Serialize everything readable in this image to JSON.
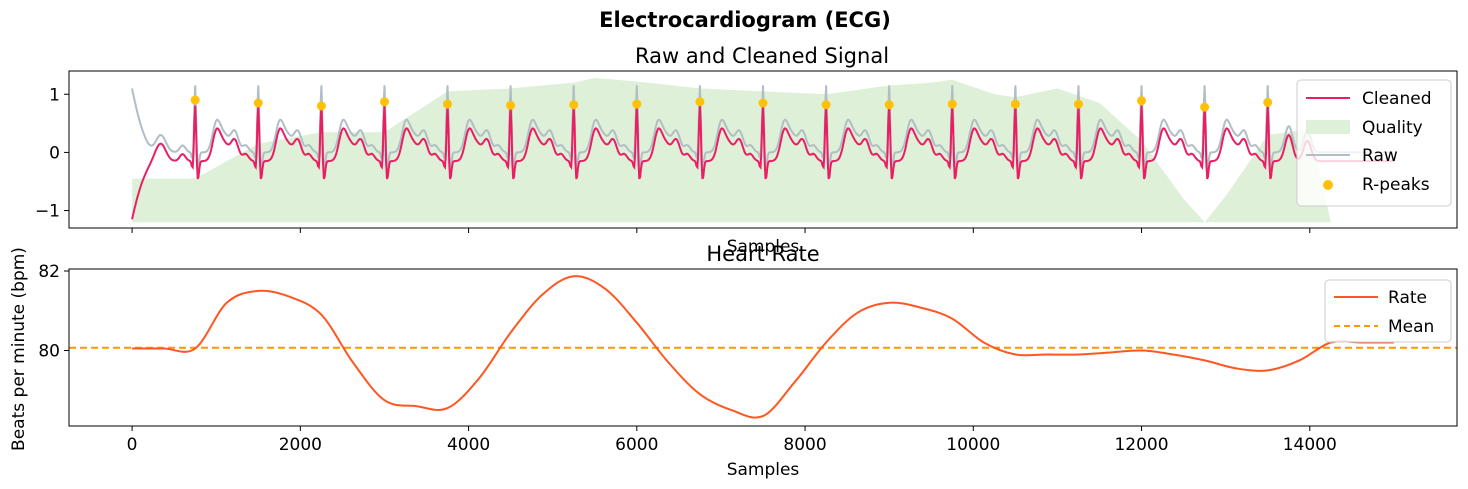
{
  "figure": {
    "suptitle": "Electrocardiogram (ECG)"
  },
  "chart_data": [
    {
      "type": "line",
      "title": "Raw and Cleaned Signal",
      "xlabel": "Samples",
      "ylabel": "",
      "xlim": [
        -750,
        15750
      ],
      "ylim": [
        -1.3,
        1.4
      ],
      "yticks": [
        -1,
        0,
        1
      ],
      "ytick_labels": [
        "−1",
        "0",
        "1"
      ],
      "xticks_shown_labels": false,
      "grid": false,
      "legend_position": "top-right",
      "sampling_rate": 1000,
      "r_peaks": {
        "name": "R-peaks",
        "color": "#FFC107",
        "x": [
          750,
          1500,
          2250,
          3000,
          3750,
          4500,
          5250,
          6000,
          6750,
          7500,
          8250,
          9000,
          9750,
          10500,
          11250,
          12000,
          12750,
          13500
        ],
        "y": [
          0.9,
          0.85,
          0.8,
          0.87,
          0.83,
          0.81,
          0.82,
          0.83,
          0.87,
          0.85,
          0.82,
          0.82,
          0.83,
          0.83,
          0.83,
          0.89,
          0.78,
          0.86
        ]
      },
      "series": [
        {
          "name": "Cleaned",
          "color": "#E91E63",
          "peak": 1.0,
          "baseline": -0.15
        },
        {
          "name": "Raw",
          "color": "#B0BEC5",
          "peak": 1.2,
          "baseline": 0.0
        },
        {
          "name": "Quality",
          "color": "#DFF0D8",
          "x": [
            0,
            250,
            750,
            1500,
            2250,
            3000,
            3750,
            4500,
            5250,
            5500,
            6000,
            6750,
            7500,
            8250,
            9000,
            9500,
            9750,
            10250,
            10500,
            11000,
            11500,
            12000,
            12500,
            12750,
            13000,
            13500,
            14000,
            14250
          ],
          "y": [
            -0.45,
            -0.45,
            -0.45,
            0.15,
            0.35,
            0.35,
            1.05,
            1.1,
            1.2,
            1.28,
            1.22,
            1.1,
            1.05,
            1.0,
            1.15,
            1.2,
            1.25,
            1.0,
            0.95,
            1.1,
            0.85,
            0.2,
            -0.8,
            -1.2,
            -0.75,
            0.3,
            0.4,
            -1.2
          ],
          "floor": -1.2
        }
      ]
    },
    {
      "type": "line",
      "title": "Heart Rate",
      "xlabel": "Samples",
      "ylabel": "Beats per minute (bpm)",
      "xlim": [
        -750,
        15750
      ],
      "ylim": [
        78.1,
        82.05
      ],
      "yticks": [
        80,
        82
      ],
      "xticks": [
        0,
        2000,
        4000,
        6000,
        8000,
        10000,
        12000,
        14000
      ],
      "grid": false,
      "legend_position": "top-right",
      "series": [
        {
          "name": "Rate",
          "color": "#FF5722",
          "x": [
            0,
            375,
            750,
            1125,
            1500,
            1875,
            2250,
            2625,
            3000,
            3375,
            3750,
            4125,
            4500,
            4875,
            5250,
            5625,
            6000,
            6375,
            6750,
            7125,
            7500,
            7875,
            8250,
            8625,
            9000,
            9375,
            9750,
            10125,
            10500,
            10875,
            11250,
            11625,
            12000,
            12375,
            12750,
            13125,
            13500,
            13875,
            14250,
            14625,
            15000
          ],
          "y": [
            80.05,
            80.05,
            80.05,
            81.2,
            81.5,
            81.35,
            80.9,
            79.7,
            78.75,
            78.6,
            78.55,
            79.3,
            80.45,
            81.4,
            81.87,
            81.55,
            80.7,
            79.7,
            78.9,
            78.5,
            78.35,
            79.2,
            80.2,
            80.95,
            81.2,
            81.08,
            80.8,
            80.2,
            79.9,
            79.9,
            79.9,
            79.95,
            80.0,
            79.9,
            79.75,
            79.55,
            79.5,
            79.75,
            80.2,
            80.2,
            80.2
          ]
        },
        {
          "name": "Mean",
          "color": "#FF9800",
          "value": 80.07,
          "style": "dashed"
        }
      ]
    }
  ]
}
